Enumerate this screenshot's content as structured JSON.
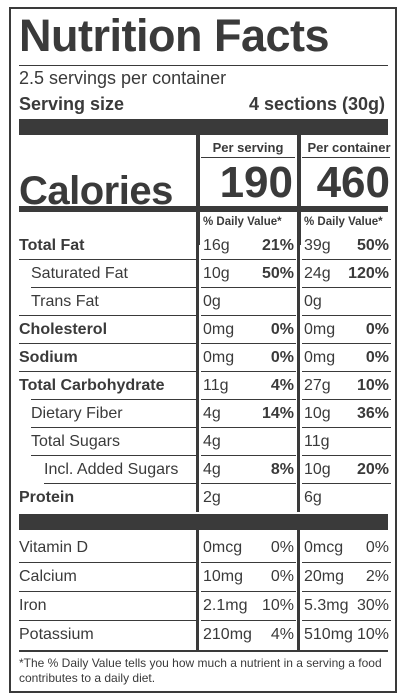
{
  "title": "Nutrition Facts",
  "servings_per_container": "2.5 servings per container",
  "serving_size_label": "Serving size",
  "serving_size_value": "4 sections (30g)",
  "column_headers": {
    "serving": "Per serving",
    "container": "Per container"
  },
  "calories": {
    "label": "Calories",
    "serving": "190",
    "container": "460"
  },
  "dv_header": "% Daily Value*",
  "main_nutrients": [
    {
      "name": "Total Fat",
      "bold": true,
      "serving_amount": "16g",
      "serving_dv": "21%",
      "container_amount": "39g",
      "container_dv": "50%"
    },
    {
      "name": "Saturated Fat",
      "bold": false,
      "serving_amount": "10g",
      "serving_dv": "50%",
      "container_amount": "24g",
      "container_dv": "120%"
    },
    {
      "name": "Trans Fat",
      "bold": false,
      "serving_amount": "0g",
      "serving_dv": "",
      "container_amount": "0g",
      "container_dv": ""
    },
    {
      "name": "Cholesterol",
      "bold": true,
      "serving_amount": "0mg",
      "serving_dv": "0%",
      "container_amount": "0mg",
      "container_dv": "0%"
    },
    {
      "name": "Sodium",
      "bold": true,
      "serving_amount": "0mg",
      "serving_dv": "0%",
      "container_amount": "0mg",
      "container_dv": "0%"
    },
    {
      "name": "Total Carbohydrate",
      "bold": true,
      "serving_amount": "11g",
      "serving_dv": "4%",
      "container_amount": "27g",
      "container_dv": "10%"
    },
    {
      "name": "Dietary Fiber",
      "bold": false,
      "serving_amount": "4g",
      "serving_dv": "14%",
      "container_amount": "10g",
      "container_dv": "36%"
    },
    {
      "name": "Total Sugars",
      "bold": false,
      "serving_amount": "4g",
      "serving_dv": "",
      "container_amount": "11g",
      "container_dv": ""
    },
    {
      "name": "Incl. Added Sugars",
      "bold": false,
      "serving_amount": "4g",
      "serving_dv": "8%",
      "container_amount": "10g",
      "container_dv": "20%"
    },
    {
      "name": "Protein",
      "bold": true,
      "serving_amount": "2g",
      "serving_dv": "",
      "container_amount": "6g",
      "container_dv": ""
    }
  ],
  "vitamins": [
    {
      "name": "Vitamin D",
      "serving_amount": "0mcg",
      "serving_dv": "0%",
      "container_amount": "0mcg",
      "container_dv": "0%"
    },
    {
      "name": "Calcium",
      "serving_amount": "10mg",
      "serving_dv": "0%",
      "container_amount": "20mg",
      "container_dv": "2%"
    },
    {
      "name": "Iron",
      "serving_amount": "2.1mg",
      "serving_dv": "10%",
      "container_amount": "5.3mg",
      "container_dv": "30%"
    },
    {
      "name": "Potassium",
      "serving_amount": "210mg",
      "serving_dv": "4%",
      "container_amount": "510mg",
      "container_dv": "10%"
    }
  ],
  "footnote": "*The % Daily Value tells you how much a nutrient in a serving a food contributes to a daily diet."
}
